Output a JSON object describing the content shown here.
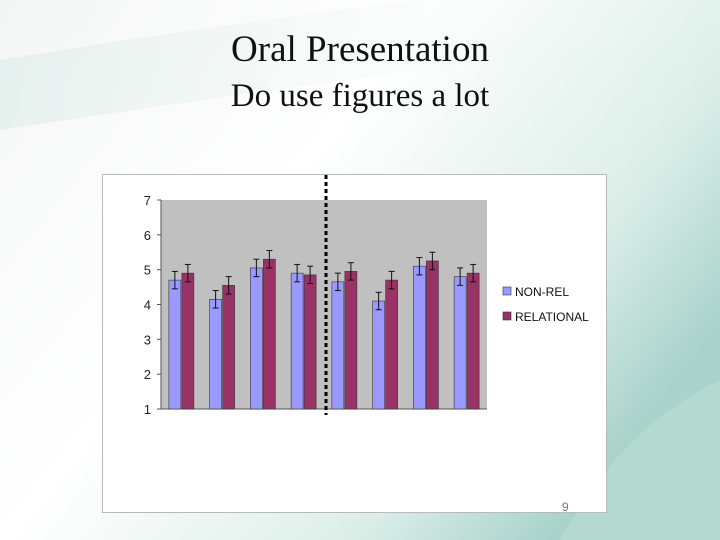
{
  "slide": {
    "title": "Oral Presentation",
    "subtitle": "Do use figures a lot",
    "page_number": "9"
  },
  "colors": {
    "series_1": "#9999ff",
    "series_2": "#993366",
    "plot_bg": "#c0c0c0",
    "divider": "#000000"
  },
  "chart_data": {
    "type": "bar",
    "categories": [
      "",
      "",
      "",
      "",
      "",
      "",
      "",
      ""
    ],
    "series": [
      {
        "name": "NON-REL",
        "values": [
          4.7,
          4.15,
          5.05,
          4.9,
          4.65,
          4.1,
          5.1,
          4.8
        ],
        "error": [
          0.25,
          0.25,
          0.25,
          0.25,
          0.25,
          0.25,
          0.25,
          0.25
        ]
      },
      {
        "name": "RELATIONAL",
        "values": [
          4.9,
          4.55,
          5.3,
          4.85,
          4.95,
          4.7,
          5.25,
          4.9
        ],
        "error": [
          0.25,
          0.25,
          0.25,
          0.25,
          0.25,
          0.25,
          0.25,
          0.25
        ]
      }
    ],
    "title": "",
    "xlabel": "",
    "ylabel": "",
    "ylim": [
      1,
      7
    ],
    "yticks": [
      "1",
      "2",
      "3",
      "4",
      "5",
      "6",
      "7"
    ],
    "grid": false,
    "legend": "right",
    "divider": "dashed vertical line between groups 4 and 5"
  }
}
